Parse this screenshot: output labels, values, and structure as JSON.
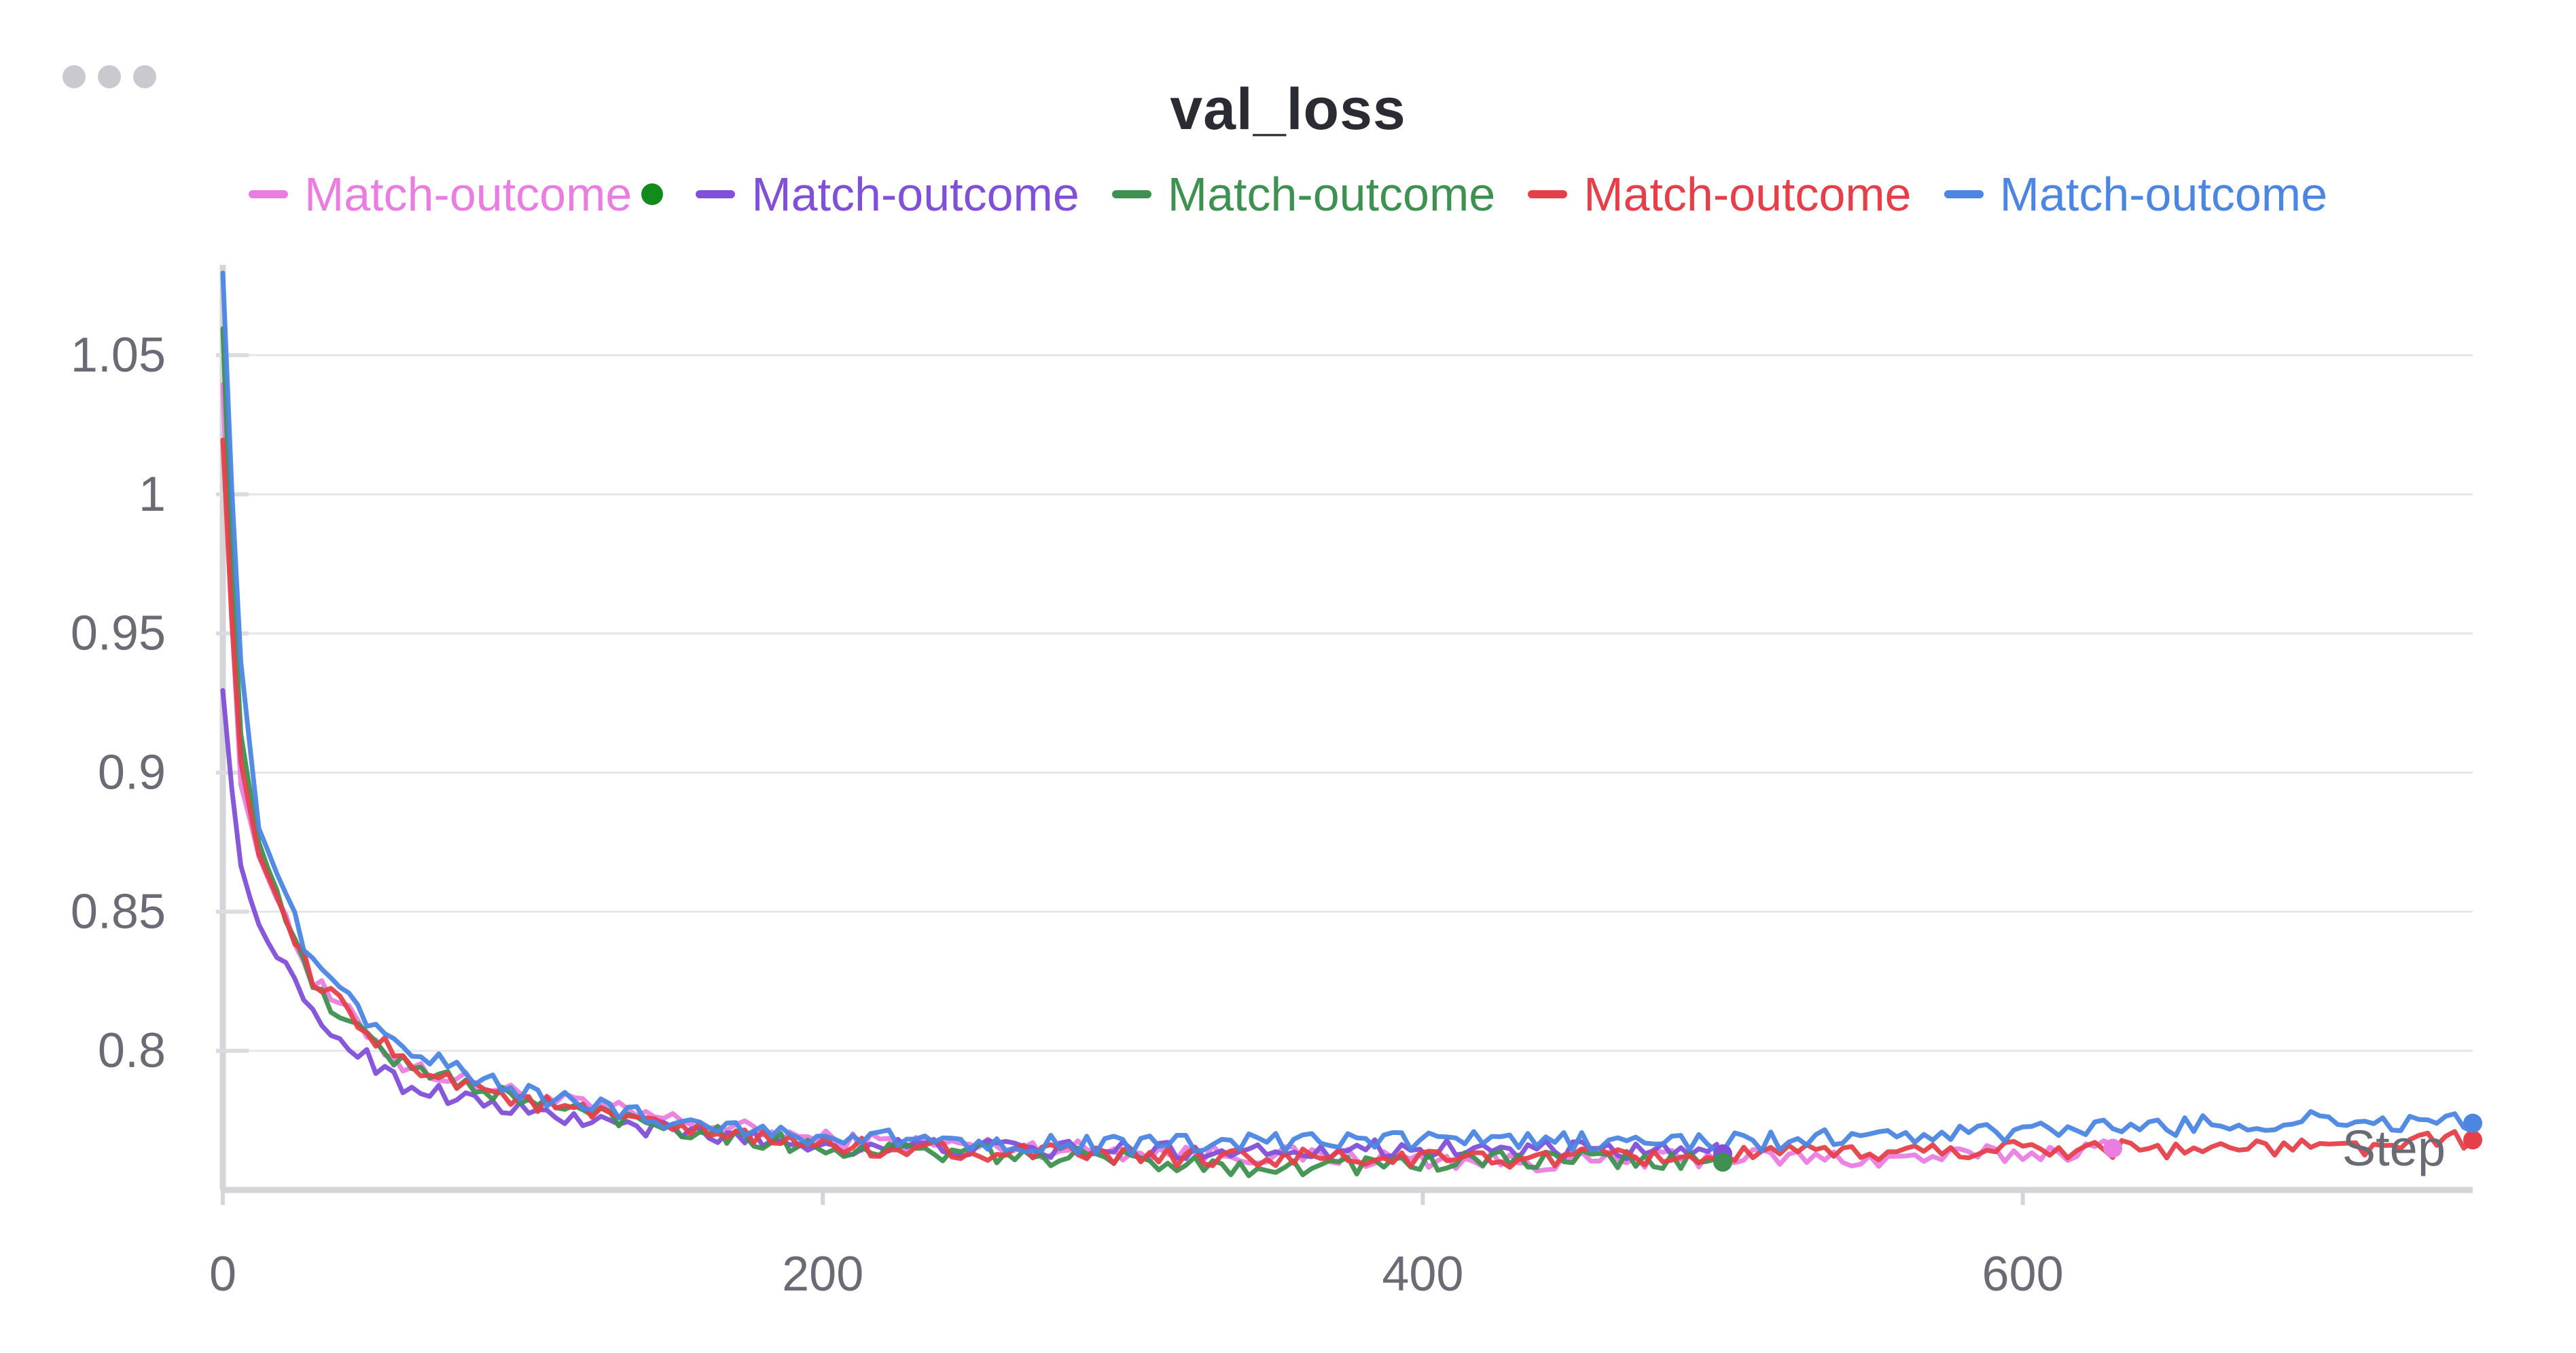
{
  "panel": {
    "title": "val_loss"
  },
  "chart_data": {
    "type": "line",
    "title": "val_loss",
    "xlabel": "Step",
    "ylabel": "",
    "xlim": [
      0,
      750
    ],
    "ylim": [
      0.75,
      1.08
    ],
    "x_ticks": [
      "0",
      "200",
      "400",
      "600"
    ],
    "x_tick_values": [
      0,
      200,
      400,
      600
    ],
    "y_ticks": [
      "0.8",
      "0.85",
      "0.9",
      "0.95",
      "1",
      "1.05"
    ],
    "y_tick_values": [
      0.8,
      0.85,
      0.9,
      0.95,
      1.0,
      1.05
    ],
    "grid": true,
    "legend_position": "top-center",
    "series": [
      {
        "name": "Match-outcome",
        "color": "#e97ee0",
        "last_step": 630,
        "anchors": [
          [
            0,
            1.04
          ],
          [
            5,
            0.9
          ],
          [
            12,
            0.87
          ],
          [
            30,
            0.825
          ],
          [
            60,
            0.795
          ],
          [
            100,
            0.784
          ],
          [
            150,
            0.775
          ],
          [
            200,
            0.768
          ],
          [
            300,
            0.764
          ],
          [
            400,
            0.761
          ],
          [
            450,
            0.76
          ],
          [
            500,
            0.762
          ],
          [
            550,
            0.761
          ],
          [
            600,
            0.763
          ],
          [
            630,
            0.765
          ]
        ]
      },
      {
        "name": "Match-outcome",
        "color": "#8150d8",
        "last_step": 500,
        "anchors": [
          [
            0,
            0.93
          ],
          [
            5,
            0.87
          ],
          [
            12,
            0.845
          ],
          [
            30,
            0.812
          ],
          [
            60,
            0.788
          ],
          [
            100,
            0.778
          ],
          [
            150,
            0.771
          ],
          [
            200,
            0.766
          ],
          [
            300,
            0.764
          ],
          [
            400,
            0.765
          ],
          [
            450,
            0.764
          ],
          [
            500,
            0.763
          ]
        ]
      },
      {
        "name": "Match-outcome",
        "color": "#3e9150",
        "last_step": 500,
        "anchors": [
          [
            0,
            1.06
          ],
          [
            5,
            0.92
          ],
          [
            12,
            0.875
          ],
          [
            30,
            0.822
          ],
          [
            60,
            0.795
          ],
          [
            100,
            0.782
          ],
          [
            150,
            0.773
          ],
          [
            200,
            0.765
          ],
          [
            300,
            0.761
          ],
          [
            350,
            0.758
          ],
          [
            400,
            0.76
          ],
          [
            450,
            0.761
          ],
          [
            500,
            0.76
          ]
        ]
      },
      {
        "name": "Match-outcome",
        "color": "#e5404a",
        "last_step": 750,
        "anchors": [
          [
            0,
            1.02
          ],
          [
            5,
            0.91
          ],
          [
            12,
            0.87
          ],
          [
            30,
            0.825
          ],
          [
            60,
            0.796
          ],
          [
            100,
            0.782
          ],
          [
            150,
            0.772
          ],
          [
            200,
            0.766
          ],
          [
            300,
            0.762
          ],
          [
            400,
            0.761
          ],
          [
            500,
            0.762
          ],
          [
            600,
            0.765
          ],
          [
            700,
            0.765
          ],
          [
            750,
            0.768
          ]
        ]
      },
      {
        "name": "Match-outcome",
        "color": "#4c86e1",
        "last_step": 750,
        "anchors": [
          [
            0,
            1.08
          ],
          [
            5,
            0.95
          ],
          [
            12,
            0.88
          ],
          [
            30,
            0.83
          ],
          [
            60,
            0.8
          ],
          [
            100,
            0.785
          ],
          [
            150,
            0.775
          ],
          [
            200,
            0.769
          ],
          [
            300,
            0.766
          ],
          [
            400,
            0.768
          ],
          [
            500,
            0.767
          ],
          [
            600,
            0.771
          ],
          [
            700,
            0.775
          ],
          [
            750,
            0.774
          ]
        ]
      }
    ]
  },
  "legend_marker": {
    "color": "#138a1c"
  }
}
